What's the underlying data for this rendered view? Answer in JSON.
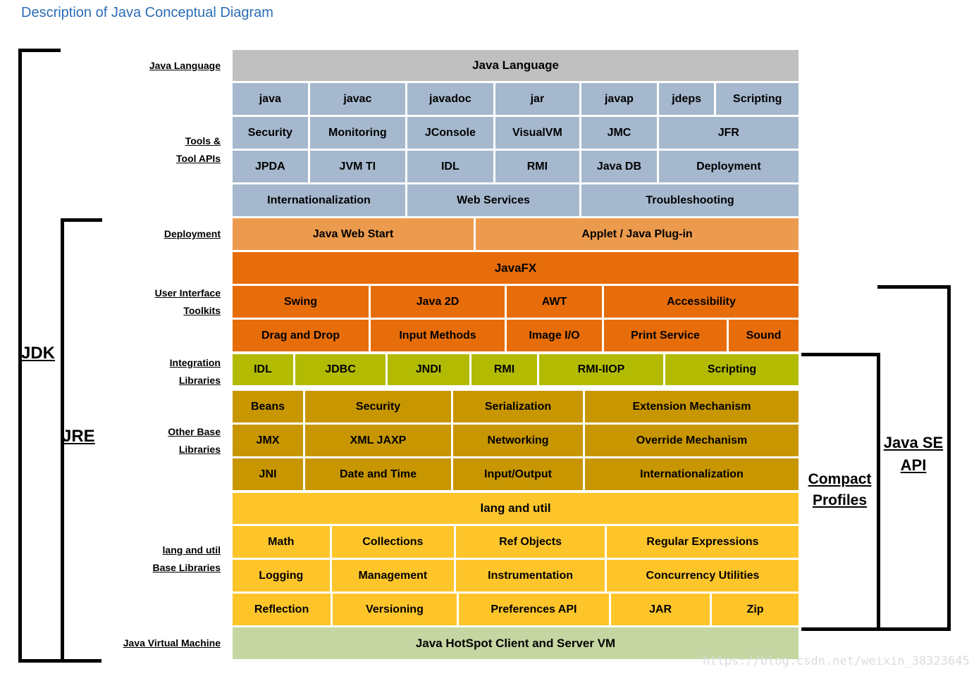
{
  "title": "Description of Java Conceptual Diagram",
  "watermark": "https://blog.csdn.net/weixin_38323645",
  "colors": {
    "title": "#2A6DB5",
    "gray": "#BFBFBF",
    "blue": "#A5B8CD",
    "lightorange": "#EC9B4E",
    "darkorange": "#E66D0A",
    "olive": "#B2BB02",
    "gold": "#C79600",
    "yellow": "#FEC52B",
    "green": "#C6D6A2",
    "bracket": "#000000"
  },
  "side_labels": {
    "java_language": [
      "Java Language"
    ],
    "tools": [
      "Tools &",
      "Tool APIs"
    ],
    "deployment": [
      "Deployment"
    ],
    "ui_toolkits": [
      "User Interface",
      "Toolkits"
    ],
    "integration": [
      "Integration",
      "Libraries"
    ],
    "other_base": [
      "Other Base",
      "Libraries"
    ],
    "lang_util": [
      "lang and util",
      "Base Libraries"
    ],
    "jvm": [
      "Java Virtual Machine"
    ]
  },
  "brackets": {
    "jdk": "JDK",
    "jre": "JRE",
    "java_se_api": [
      "Java SE",
      "API"
    ],
    "compact_profiles": [
      "Compact",
      "Profiles"
    ]
  },
  "grid": {
    "rows": [
      {
        "name": "java-language-header",
        "color": "gray",
        "cells": [
          "Java Language"
        ]
      },
      {
        "name": "tools-row-1",
        "color": "blue",
        "cells": [
          "java",
          "javac",
          "javadoc",
          "jar",
          "javap",
          "jdeps",
          "Scripting"
        ]
      },
      {
        "name": "tools-row-2",
        "color": "blue",
        "cells": [
          "Security",
          "Monitoring",
          "JConsole",
          "VisualVM",
          "JMC",
          "JFR"
        ]
      },
      {
        "name": "tools-row-3",
        "color": "blue",
        "cells": [
          "JPDA",
          "JVM TI",
          "IDL",
          "RMI",
          "Java DB",
          "Deployment"
        ]
      },
      {
        "name": "tools-row-4",
        "color": "blue",
        "cells": [
          "Internationalization",
          "Web Services",
          "Troubleshooting"
        ]
      },
      {
        "name": "deployment-row",
        "color": "lightorange",
        "cells": [
          "Java Web Start",
          "Applet / Java Plug-in"
        ]
      },
      {
        "name": "javafx-banner",
        "color": "darkorange",
        "cells": [
          "JavaFX"
        ]
      },
      {
        "name": "ui-toolkits-row-1",
        "color": "darkorange",
        "cells": [
          "Swing",
          "Java 2D",
          "AWT",
          "Accessibility"
        ]
      },
      {
        "name": "ui-toolkits-row-2",
        "color": "darkorange",
        "cells": [
          "Drag and Drop",
          "Input Methods",
          "Image I/O",
          "Print Service",
          "Sound"
        ]
      },
      {
        "name": "integration-row",
        "color": "olive",
        "cells": [
          "IDL",
          "JDBC",
          "JNDI",
          "RMI",
          "RMI-IIOP",
          "Scripting"
        ]
      },
      {
        "name": "other-base-row-1",
        "color": "gold",
        "cells": [
          "Beans",
          "Security",
          "Serialization",
          "Extension Mechanism"
        ]
      },
      {
        "name": "other-base-row-2",
        "color": "gold",
        "cells": [
          "JMX",
          "XML JAXP",
          "Networking",
          "Override Mechanism"
        ]
      },
      {
        "name": "other-base-row-3",
        "color": "gold",
        "cells": [
          "JNI",
          "Date and Time",
          "Input/Output",
          "Internationalization"
        ]
      },
      {
        "name": "lang-util-banner",
        "color": "yellow",
        "cells": [
          "lang and util"
        ]
      },
      {
        "name": "lang-util-row-1",
        "color": "yellow",
        "cells": [
          "Math",
          "Collections",
          "Ref Objects",
          "Regular Expressions"
        ]
      },
      {
        "name": "lang-util-row-2",
        "color": "yellow",
        "cells": [
          "Logging",
          "Management",
          "Instrumentation",
          "Concurrency Utilities"
        ]
      },
      {
        "name": "lang-util-row-3",
        "color": "yellow",
        "cells": [
          "Reflection",
          "Versioning",
          "Preferences API",
          "JAR",
          "Zip"
        ]
      },
      {
        "name": "jvm-row",
        "color": "green",
        "cells": [
          "Java HotSpot Client and Server VM"
        ]
      }
    ]
  }
}
